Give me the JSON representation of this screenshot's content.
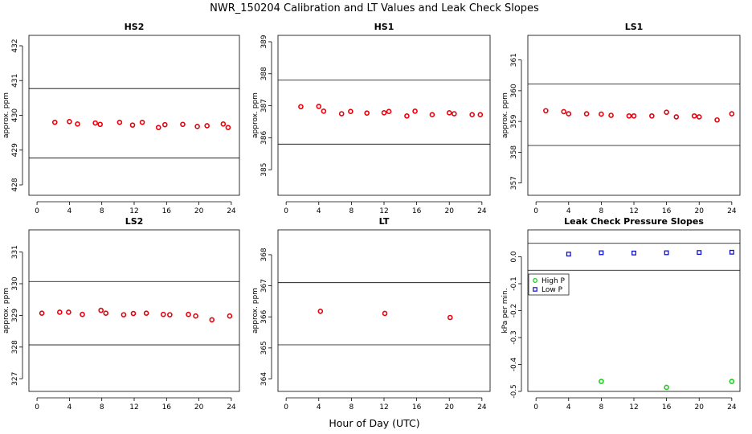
{
  "title": "NWR_150204  Calibration and LT Values and Leak Check Slopes",
  "xlabel": "Hour of Day (UTC)",
  "colors": {
    "points": "#e8000b",
    "high_p": "#22cc22",
    "low_p": "#1111cc",
    "frame": "#000000"
  },
  "chart_data": [
    {
      "type": "scatter",
      "title": "HS2",
      "ylabel": "approx. ppm",
      "xlim": [
        -1,
        25
      ],
      "ylim": [
        427.7,
        432.3
      ],
      "x_ticks": [
        0,
        4,
        8,
        12,
        16,
        20,
        24
      ],
      "y_ticks": [
        428,
        429,
        430,
        431,
        432
      ],
      "hlines": [
        430.77,
        428.77
      ],
      "series": [
        {
          "x": [
            2.2,
            4,
            5,
            7.2,
            7.8,
            10.2,
            11.8,
            13,
            15,
            15.8,
            18,
            19.8,
            21,
            23,
            23.6
          ],
          "y": [
            429.8,
            429.82,
            429.75,
            429.78,
            429.74,
            429.8,
            429.72,
            429.8,
            429.65,
            429.73,
            429.74,
            429.68,
            429.7,
            429.75,
            429.65
          ]
        }
      ]
    },
    {
      "type": "scatter",
      "title": "HS1",
      "ylabel": "approx. ppm",
      "xlim": [
        -1,
        25
      ],
      "ylim": [
        384.2,
        389.2
      ],
      "x_ticks": [
        0,
        4,
        8,
        12,
        16,
        20,
        24
      ],
      "y_ticks": [
        385,
        386,
        387,
        388,
        389
      ],
      "hlines": [
        387.8,
        385.8
      ],
      "series": [
        {
          "x": [
            1.8,
            4,
            4.6,
            6.8,
            7.9,
            9.9,
            12,
            12.6,
            14.8,
            15.8,
            17.9,
            20,
            20.6,
            22.8,
            23.8
          ],
          "y": [
            386.97,
            386.98,
            386.83,
            386.75,
            386.82,
            386.77,
            386.78,
            386.82,
            386.68,
            386.83,
            386.72,
            386.78,
            386.75,
            386.72,
            386.72
          ]
        }
      ]
    },
    {
      "type": "scatter",
      "title": "LS1",
      "ylabel": "approx. ppm",
      "xlim": [
        -1,
        25
      ],
      "ylim": [
        356.6,
        361.8
      ],
      "x_ticks": [
        0,
        4,
        8,
        12,
        16,
        20,
        24
      ],
      "y_ticks": [
        357,
        358,
        359,
        360,
        361
      ],
      "hlines": [
        360.22,
        358.22
      ],
      "series": [
        {
          "x": [
            1.2,
            3.4,
            4,
            6.2,
            8,
            9.2,
            11.4,
            12,
            14.2,
            16,
            17.2,
            19.4,
            20,
            22.2,
            24
          ],
          "y": [
            359.35,
            359.32,
            359.25,
            359.25,
            359.24,
            359.2,
            359.18,
            359.18,
            359.18,
            359.3,
            359.15,
            359.18,
            359.15,
            359.05,
            359.25
          ]
        }
      ]
    },
    {
      "type": "scatter",
      "title": "LS2",
      "ylabel": "approx. ppm",
      "xlim": [
        -1,
        25
      ],
      "ylim": [
        326.6,
        331.7
      ],
      "x_ticks": [
        0,
        4,
        8,
        12,
        16,
        20,
        24
      ],
      "y_ticks": [
        327,
        328,
        329,
        330,
        331
      ],
      "hlines": [
        330.07,
        328.07
      ],
      "series": [
        {
          "x": [
            0.6,
            2.8,
            3.9,
            5.6,
            7.9,
            8.5,
            10.7,
            11.9,
            13.5,
            15.6,
            16.4,
            18.7,
            19.6,
            21.6,
            23.8
          ],
          "y": [
            329.07,
            329.1,
            329.1,
            329.03,
            329.16,
            329.07,
            329.02,
            329.06,
            329.07,
            329.03,
            329.02,
            329.03,
            328.98,
            328.86,
            328.98
          ]
        }
      ]
    },
    {
      "type": "scatter",
      "title": "LT",
      "ylabel": "approx. ppm",
      "xlim": [
        -1,
        25
      ],
      "ylim": [
        363.6,
        368.8
      ],
      "x_ticks": [
        0,
        4,
        8,
        12,
        16,
        20,
        24
      ],
      "y_ticks": [
        364,
        365,
        366,
        367,
        368
      ],
      "hlines": [
        367.1,
        365.1
      ],
      "series": [
        {
          "x": [
            4.2,
            12.1,
            20.1
          ],
          "y": [
            366.18,
            366.11,
            365.98
          ]
        }
      ]
    },
    {
      "type": "scatter",
      "title": "Leak Check Pressure Slopes",
      "ylabel": "kPa per min.",
      "xlim": [
        -1,
        25
      ],
      "ylim": [
        -0.5,
        0.1
      ],
      "x_ticks": [
        0,
        4,
        8,
        12,
        16,
        20,
        24
      ],
      "y_ticks": [
        0.0,
        -0.1,
        -0.2,
        -0.3,
        -0.4,
        -0.5
      ],
      "y_tick_labels": [
        "0.0",
        "-0.1",
        "-0.2",
        "-0.3",
        "-0.4",
        "-0.5"
      ],
      "hlines": [
        0.05,
        -0.05
      ],
      "legend": {
        "position": "left",
        "entries": [
          "High P",
          "Low P"
        ]
      },
      "series": [
        {
          "name": "High P",
          "marker": "circle",
          "x": [
            8,
            16,
            24
          ],
          "y": [
            -0.463,
            -0.485,
            -0.463
          ]
        },
        {
          "name": "Low P",
          "marker": "square",
          "x": [
            4,
            8,
            12,
            16,
            20,
            24
          ],
          "y": [
            0.01,
            0.015,
            0.014,
            0.015,
            0.016,
            0.017
          ]
        }
      ]
    }
  ]
}
